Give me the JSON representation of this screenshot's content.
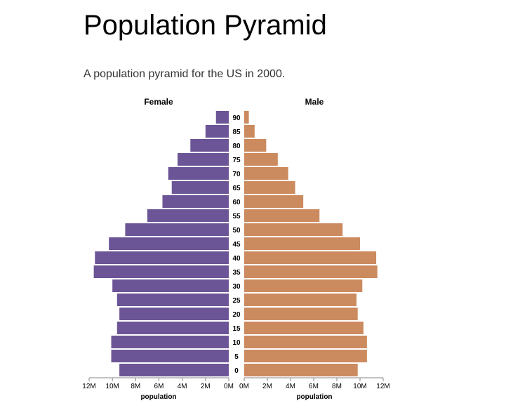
{
  "page": {
    "title": "Population Pyramid",
    "subtitle": "A population pyramid for the US in 2000."
  },
  "chart_data": {
    "type": "bar",
    "orientation": "horizontal-mirrored",
    "ages": [
      "0",
      "5",
      "10",
      "15",
      "20",
      "25",
      "30",
      "35",
      "40",
      "45",
      "50",
      "55",
      "60",
      "65",
      "70",
      "75",
      "80",
      "85",
      "90"
    ],
    "series": [
      {
        "name": "Female",
        "color": "#6c5596",
        "values": [
          9.4,
          10.1,
          10.1,
          9.6,
          9.4,
          9.6,
          10.0,
          11.6,
          11.5,
          10.3,
          8.9,
          7.0,
          5.7,
          4.9,
          5.2,
          4.4,
          3.3,
          2.0,
          1.1
        ]
      },
      {
        "name": "Male",
        "color": "#cc8a5f",
        "values": [
          9.8,
          10.6,
          10.6,
          10.3,
          9.8,
          9.7,
          10.2,
          11.5,
          11.4,
          10.0,
          8.5,
          6.5,
          5.1,
          4.4,
          3.8,
          2.9,
          1.9,
          0.9,
          0.4
        ]
      }
    ],
    "x_ticks": [
      "0M",
      "2M",
      "4M",
      "6M",
      "8M",
      "10M",
      "12M"
    ],
    "x_tick_values": [
      0,
      2,
      4,
      6,
      8,
      10,
      12
    ],
    "xlabel": "population",
    "xlim": [
      0,
      12
    ],
    "grid": false,
    "legend": "none"
  }
}
